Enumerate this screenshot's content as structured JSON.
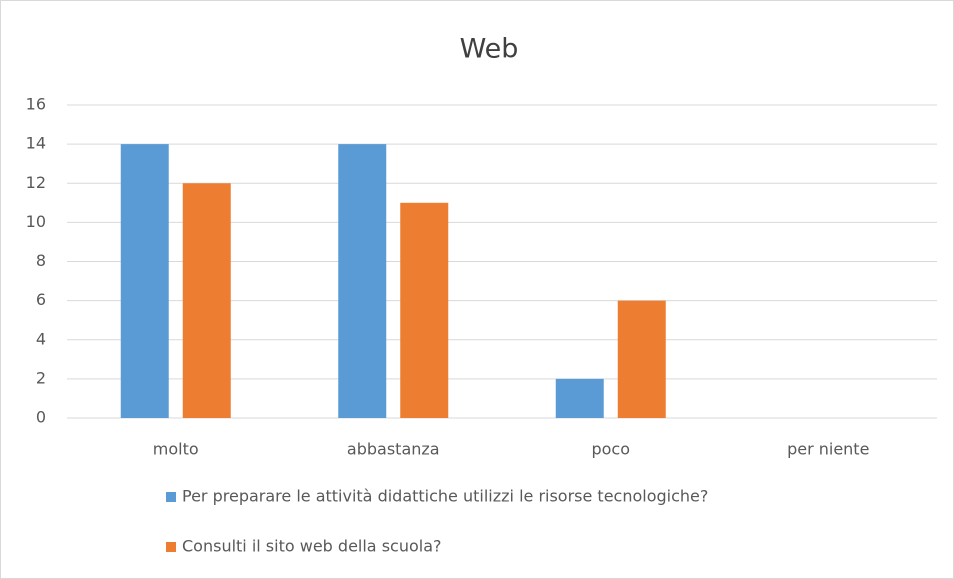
{
  "chart_data": {
    "type": "bar",
    "title": "Web",
    "categories": [
      "molto",
      "abbastanza",
      "poco",
      "per niente"
    ],
    "series": [
      {
        "name": "Per preparare le attività didattiche utilizzi le risorse tecnologiche?",
        "color": "#5b9bd5",
        "values": [
          14,
          14,
          2,
          0
        ]
      },
      {
        "name": "Consulti il sito web della scuola?",
        "color": "#ed7d31",
        "values": [
          12,
          11,
          6,
          0
        ]
      }
    ],
    "ylim": [
      0,
      16
    ],
    "yticks": [
      0,
      2,
      4,
      6,
      8,
      10,
      12,
      14,
      16
    ],
    "grid": true,
    "legend": "bottom"
  }
}
